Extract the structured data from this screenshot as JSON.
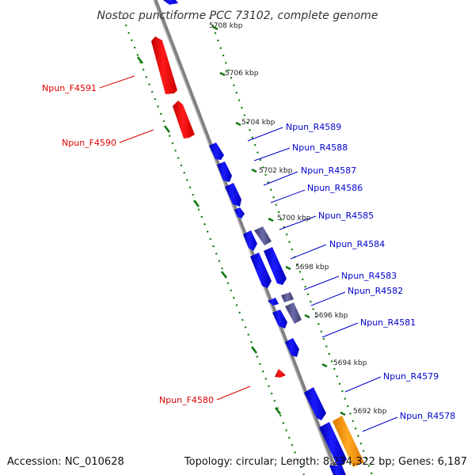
{
  "title": "Nostoc punctiforme PCC 73102, complete genome",
  "footer": {
    "accession": "Accession: NC_010628",
    "topology": "Topology: circular; Length: 8,234,322 bp; Genes: 6,187"
  },
  "colors": {
    "backbone": "#808080",
    "forward_gene": "#ee0000",
    "reverse_gene": "#0000ee",
    "other_feature": "#4a4a9a",
    "highlight_feature": "#ff9900",
    "tick": "#117711",
    "forward_label": "#dd0000",
    "reverse_label": "#0000cc"
  },
  "kbp_labels": [
    "5708 kbp",
    "5706 kbp",
    "5704 kbp",
    "5702 kbp",
    "5700 kbp",
    "5698 kbp",
    "5696 kbp",
    "5694 kbp",
    "5692 kbp"
  ],
  "forward_labels": [
    "Npun_F4591",
    "Npun_F4590",
    "Npun_F4580"
  ],
  "reverse_labels": [
    "Npun_R4589",
    "Npun_R4588",
    "Npun_R4587",
    "Npun_R4586",
    "Npun_R4585",
    "Npun_R4584",
    "Npun_R4583",
    "Npun_R4582",
    "Npun_R4581",
    "Npun_R4579",
    "Npun_R4578"
  ]
}
